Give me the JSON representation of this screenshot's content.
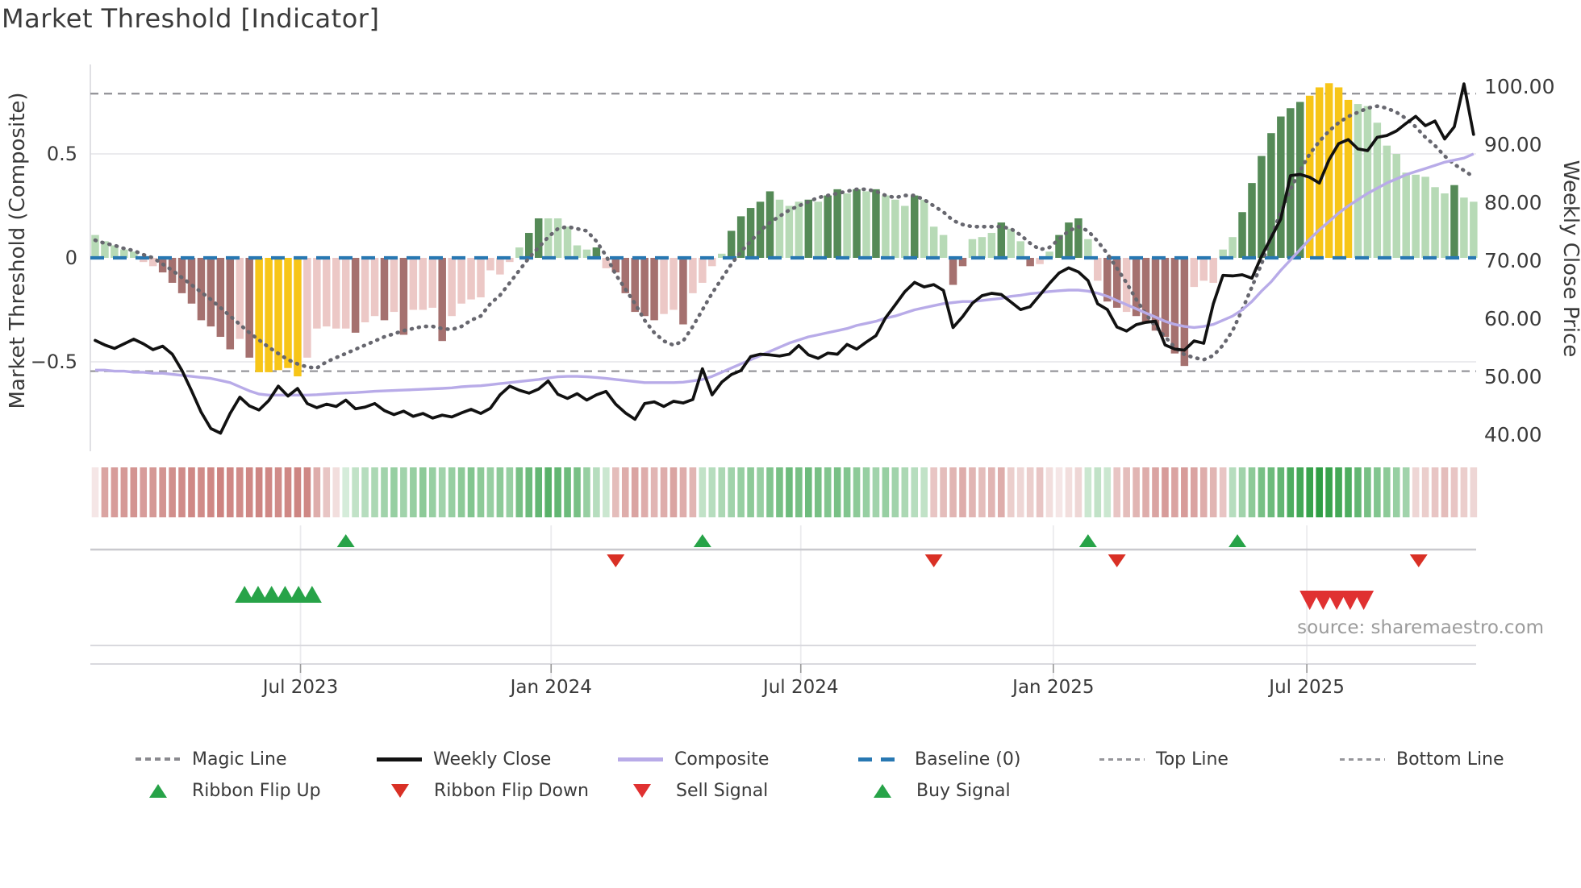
{
  "title": "Market Threshold [Indicator]",
  "source": "source: sharemaestro.com",
  "axes": {
    "left_label": "Market Threshold (Composite)",
    "right_label": "Weekly Close Price",
    "left_ticks": [
      {
        "label": "0.5",
        "value": 0.5
      },
      {
        "label": "0",
        "value": 0
      },
      {
        "label": "−0.5",
        "value": -0.5
      }
    ],
    "right_ticks": [
      {
        "label": "100.00",
        "value": 100
      },
      {
        "label": "90.00",
        "value": 90
      },
      {
        "label": "80.00",
        "value": 80
      },
      {
        "label": "70.00",
        "value": 70
      },
      {
        "label": "60.00",
        "value": 60
      },
      {
        "label": "50.00",
        "value": 50
      },
      {
        "label": "40.00",
        "value": 40
      }
    ],
    "x_ticks": [
      {
        "label": "Jul 2023",
        "week": 21.3
      },
      {
        "label": "Jan 2024",
        "week": 47.3
      },
      {
        "label": "Jul 2024",
        "week": 73.2
      },
      {
        "label": "Jan 2025",
        "week": 99.4
      },
      {
        "label": "Jul 2025",
        "week": 125.7
      }
    ]
  },
  "legend": {
    "magic": "Magic Line",
    "weekly_close": "Weekly Close",
    "composite": "Composite",
    "baseline": "Baseline (0)",
    "top_line": "Top Line",
    "bottom_line": "Bottom Line",
    "flip_up": "Ribbon Flip Up",
    "flip_down": "Ribbon Flip Down",
    "sell": "Sell Signal",
    "buy": "Buy Signal"
  },
  "colors": {
    "bar_palette": {
      "g": "#b7dab6",
      "G": "#558a57",
      "r": "#ecc8c6",
      "R": "#a5716f",
      "Y": "#f7c518"
    },
    "weekly_close": "#111111",
    "composite": "#b8abe8",
    "magic_line": "#67676f",
    "baseline": "#2878b2",
    "threshold_lines": "#96969b",
    "grid": "#ebebee",
    "spine": "#d9d9de",
    "axis_text": "#3a3a3a",
    "ribbon_green": "#2f9e44",
    "ribbon_red": "#bc5a56",
    "flip_up": "#27a348",
    "flip_down": "#d93025",
    "buy": "#27a348",
    "sell": "#e03131"
  },
  "chart_data": {
    "type": "bar",
    "note": "combo chart: weekly composite bars (left axis), weekly close price line (right axis), composite and magic lines, signal ribbon and markers",
    "weeks": 144,
    "top_line": 0.79,
    "bottom_line": -0.545,
    "baseline": 0,
    "left_axis_range": [
      -1.0,
      1.0
    ],
    "right_axis_range": [
      40,
      100
    ],
    "bars": {
      "values": [
        0.11,
        0.08,
        0.06,
        0.04,
        0.03,
        -0.02,
        -0.04,
        -0.07,
        -0.12,
        -0.17,
        -0.22,
        -0.3,
        -0.33,
        -0.38,
        -0.44,
        -0.39,
        -0.48,
        -0.55,
        -0.55,
        -0.54,
        -0.53,
        -0.57,
        -0.48,
        -0.34,
        -0.33,
        -0.34,
        -0.34,
        -0.36,
        -0.31,
        -0.28,
        -0.3,
        -0.26,
        -0.37,
        -0.25,
        -0.25,
        -0.24,
        -0.4,
        -0.28,
        -0.22,
        -0.2,
        -0.19,
        -0.06,
        -0.08,
        -0.02,
        0.05,
        0.12,
        0.19,
        0.19,
        0.19,
        0.15,
        0.06,
        0.04,
        0.05,
        -0.05,
        -0.07,
        -0.17,
        -0.26,
        -0.28,
        -0.3,
        -0.27,
        -0.25,
        -0.32,
        -0.17,
        -0.12,
        -0.04,
        0.02,
        0.13,
        0.2,
        0.24,
        0.27,
        0.32,
        0.28,
        0.25,
        0.27,
        0.28,
        0.27,
        0.3,
        0.33,
        0.31,
        0.33,
        0.32,
        0.33,
        0.3,
        0.28,
        0.25,
        0.3,
        0.28,
        0.15,
        0.11,
        -0.13,
        -0.04,
        0.09,
        0.1,
        0.12,
        0.17,
        0.14,
        0.08,
        -0.04,
        -0.03,
        0.03,
        0.11,
        0.17,
        0.19,
        0.09,
        -0.11,
        -0.21,
        -0.24,
        -0.26,
        -0.28,
        -0.31,
        -0.35,
        -0.38,
        -0.46,
        -0.52,
        -0.14,
        -0.11,
        -0.12,
        0.04,
        0.1,
        0.22,
        0.36,
        0.49,
        0.6,
        0.68,
        0.72,
        0.75,
        0.78,
        0.82,
        0.84,
        0.82,
        0.76,
        0.74,
        0.73,
        0.65,
        0.54,
        0.5,
        0.41,
        0.4,
        0.39,
        0.34,
        0.31,
        0.35,
        0.29,
        0.27
      ],
      "colors": [
        "g",
        "g",
        "g",
        "g",
        "g",
        "r",
        "r",
        "R",
        "R",
        "R",
        "R",
        "R",
        "R",
        "R",
        "R",
        "r",
        "R",
        "Y",
        "Y",
        "Y",
        "Y",
        "Y",
        "r",
        "r",
        "r",
        "r",
        "r",
        "R",
        "r",
        "r",
        "R",
        "r",
        "R",
        "r",
        "r",
        "r",
        "R",
        "r",
        "r",
        "r",
        "r",
        "r",
        "r",
        "r",
        "g",
        "G",
        "G",
        "g",
        "g",
        "g",
        "g",
        "g",
        "G",
        "r",
        "R",
        "R",
        "R",
        "R",
        "R",
        "r",
        "r",
        "R",
        "r",
        "r",
        "r",
        "g",
        "G",
        "G",
        "G",
        "G",
        "G",
        "g",
        "g",
        "g",
        "G",
        "g",
        "G",
        "G",
        "g",
        "G",
        "g",
        "G",
        "g",
        "g",
        "g",
        "G",
        "g",
        "g",
        "g",
        "R",
        "R",
        "g",
        "g",
        "g",
        "G",
        "g",
        "g",
        "R",
        "r",
        "g",
        "G",
        "G",
        "G",
        "g",
        "r",
        "R",
        "R",
        "r",
        "R",
        "R",
        "R",
        "R",
        "R",
        "R",
        "r",
        "r",
        "r",
        "g",
        "g",
        "G",
        "G",
        "G",
        "G",
        "G",
        "G",
        "G",
        "Y",
        "Y",
        "Y",
        "Y",
        "Y",
        "g",
        "g",
        "g",
        "g",
        "g",
        "g",
        "g",
        "g",
        "g",
        "g",
        "G",
        "g",
        "g"
      ]
    },
    "weekly_close": [
      56.2,
      55.4,
      54.8,
      55.6,
      56.4,
      55.6,
      54.6,
      55.2,
      53.8,
      51.0,
      47.5,
      43.8,
      41.0,
      40.2,
      43.6,
      46.4,
      44.9,
      44.2,
      45.8,
      48.3,
      46.6,
      47.9,
      45.3,
      44.6,
      45.2,
      44.8,
      45.9,
      44.4,
      44.7,
      45.3,
      44.1,
      43.4,
      44.0,
      43.1,
      43.6,
      42.8,
      43.3,
      43.0,
      43.7,
      44.3,
      43.6,
      44.5,
      46.8,
      48.3,
      47.6,
      47.1,
      47.8,
      49.2,
      46.9,
      46.2,
      47.0,
      45.9,
      46.8,
      47.4,
      45.2,
      43.7,
      42.6,
      45.3,
      45.6,
      44.8,
      45.7,
      45.4,
      46.0,
      51.3,
      46.8,
      49.0,
      50.3,
      51.0,
      53.4,
      53.8,
      53.7,
      53.5,
      53.8,
      55.3,
      53.7,
      53.1,
      54.0,
      53.8,
      55.5,
      54.7,
      55.9,
      57.0,
      60.1,
      62.3,
      64.6,
      66.2,
      65.4,
      65.8,
      64.8,
      58.4,
      60.3,
      62.6,
      63.9,
      64.3,
      64.1,
      62.8,
      61.5,
      62.0,
      64.0,
      66.0,
      67.8,
      68.7,
      68.0,
      66.5,
      62.5,
      61.5,
      58.5,
      57.8,
      58.9,
      59.3,
      59.5,
      55.4,
      54.7,
      54.5,
      56.1,
      55.7,
      62.5,
      67.4,
      67.3,
      67.5,
      66.9,
      70.7,
      73.9,
      77.1,
      84.6,
      84.8,
      84.3,
      83.3,
      87.3,
      90.1,
      90.8,
      89.2,
      88.9,
      91.2,
      91.5,
      92.3,
      93.6,
      94.8,
      93.2,
      94.0,
      90.9,
      93.0,
      100.4,
      91.7
    ],
    "composite": [
      -0.54,
      -0.54,
      -0.545,
      -0.545,
      -0.55,
      -0.55,
      -0.555,
      -0.555,
      -0.56,
      -0.565,
      -0.57,
      -0.575,
      -0.58,
      -0.59,
      -0.6,
      -0.62,
      -0.64,
      -0.655,
      -0.66,
      -0.66,
      -0.66,
      -0.66,
      -0.66,
      -0.658,
      -0.655,
      -0.652,
      -0.65,
      -0.648,
      -0.645,
      -0.642,
      -0.64,
      -0.638,
      -0.636,
      -0.634,
      -0.632,
      -0.63,
      -0.628,
      -0.625,
      -0.62,
      -0.617,
      -0.615,
      -0.61,
      -0.605,
      -0.6,
      -0.595,
      -0.59,
      -0.585,
      -0.578,
      -0.572,
      -0.57,
      -0.57,
      -0.572,
      -0.575,
      -0.58,
      -0.585,
      -0.59,
      -0.595,
      -0.6,
      -0.6,
      -0.6,
      -0.6,
      -0.598,
      -0.592,
      -0.585,
      -0.57,
      -0.55,
      -0.53,
      -0.51,
      -0.49,
      -0.47,
      -0.45,
      -0.43,
      -0.41,
      -0.395,
      -0.38,
      -0.37,
      -0.36,
      -0.35,
      -0.34,
      -0.325,
      -0.315,
      -0.305,
      -0.29,
      -0.28,
      -0.265,
      -0.25,
      -0.24,
      -0.23,
      -0.22,
      -0.215,
      -0.21,
      -0.21,
      -0.205,
      -0.2,
      -0.195,
      -0.185,
      -0.18,
      -0.172,
      -0.168,
      -0.162,
      -0.158,
      -0.155,
      -0.155,
      -0.16,
      -0.17,
      -0.185,
      -0.205,
      -0.225,
      -0.245,
      -0.265,
      -0.285,
      -0.305,
      -0.32,
      -0.33,
      -0.335,
      -0.33,
      -0.32,
      -0.3,
      -0.28,
      -0.25,
      -0.21,
      -0.16,
      -0.115,
      -0.06,
      -0.01,
      0.04,
      0.09,
      0.135,
      0.175,
      0.215,
      0.25,
      0.28,
      0.31,
      0.335,
      0.36,
      0.38,
      0.4,
      0.415,
      0.43,
      0.445,
      0.46,
      0.47,
      0.48,
      0.5
    ],
    "magic_line": [
      0.085,
      0.07,
      0.06,
      0.045,
      0.035,
      0.015,
      0.0,
      -0.03,
      -0.06,
      -0.095,
      -0.13,
      -0.165,
      -0.2,
      -0.24,
      -0.28,
      -0.32,
      -0.36,
      -0.395,
      -0.43,
      -0.46,
      -0.49,
      -0.51,
      -0.525,
      -0.53,
      -0.5,
      -0.48,
      -0.46,
      -0.44,
      -0.42,
      -0.4,
      -0.38,
      -0.365,
      -0.35,
      -0.34,
      -0.33,
      -0.33,
      -0.34,
      -0.345,
      -0.33,
      -0.3,
      -0.28,
      -0.22,
      -0.18,
      -0.12,
      -0.06,
      0.0,
      0.05,
      0.1,
      0.14,
      0.15,
      0.14,
      0.13,
      0.08,
      0.01,
      -0.08,
      -0.15,
      -0.22,
      -0.3,
      -0.36,
      -0.4,
      -0.42,
      -0.4,
      -0.33,
      -0.25,
      -0.17,
      -0.1,
      -0.03,
      0.03,
      0.08,
      0.13,
      0.17,
      0.2,
      0.23,
      0.25,
      0.27,
      0.29,
      0.3,
      0.31,
      0.32,
      0.33,
      0.33,
      0.32,
      0.3,
      0.29,
      0.3,
      0.3,
      0.28,
      0.25,
      0.22,
      0.18,
      0.16,
      0.15,
      0.15,
      0.15,
      0.15,
      0.14,
      0.11,
      0.07,
      0.04,
      0.05,
      0.09,
      0.13,
      0.15,
      0.13,
      0.08,
      0.02,
      -0.05,
      -0.12,
      -0.2,
      -0.27,
      -0.33,
      -0.38,
      -0.43,
      -0.465,
      -0.48,
      -0.49,
      -0.47,
      -0.42,
      -0.35,
      -0.25,
      -0.14,
      -0.03,
      0.1,
      0.22,
      0.33,
      0.42,
      0.5,
      0.56,
      0.61,
      0.65,
      0.68,
      0.7,
      0.72,
      0.73,
      0.72,
      0.7,
      0.67,
      0.63,
      0.58,
      0.54,
      0.49,
      0.45,
      0.42,
      0.39
    ],
    "ribbon": [
      -0.15,
      -0.55,
      -0.6,
      -0.62,
      -0.65,
      -0.6,
      -0.62,
      -0.65,
      -0.68,
      -0.7,
      -0.72,
      -0.7,
      -0.72,
      -0.75,
      -0.72,
      -0.7,
      -0.72,
      -0.74,
      -0.72,
      -0.7,
      -0.72,
      -0.74,
      -0.72,
      -0.5,
      -0.35,
      -0.2,
      0.2,
      0.3,
      0.35,
      0.4,
      0.45,
      0.5,
      0.45,
      0.5,
      0.55,
      0.5,
      0.45,
      0.5,
      0.55,
      0.6,
      0.55,
      0.5,
      0.55,
      0.5,
      0.65,
      0.7,
      0.75,
      0.8,
      0.75,
      0.7,
      0.65,
      0.5,
      0.35,
      0.25,
      -0.4,
      -0.5,
      -0.55,
      -0.5,
      -0.45,
      -0.5,
      -0.55,
      -0.5,
      -0.45,
      0.3,
      0.35,
      0.4,
      0.45,
      0.5,
      0.55,
      0.5,
      0.6,
      0.65,
      0.7,
      0.65,
      0.7,
      0.65,
      0.6,
      0.65,
      0.6,
      0.55,
      0.5,
      0.45,
      0.5,
      0.45,
      0.4,
      0.35,
      0.3,
      -0.35,
      -0.4,
      -0.45,
      -0.5,
      -0.45,
      -0.4,
      -0.45,
      -0.5,
      -0.3,
      -0.25,
      -0.3,
      -0.35,
      -0.2,
      -0.15,
      -0.2,
      -0.25,
      0.25,
      0.3,
      0.25,
      -0.35,
      -0.4,
      -0.45,
      -0.5,
      -0.55,
      -0.6,
      -0.55,
      -0.6,
      -0.55,
      -0.5,
      -0.45,
      -0.35,
      0.35,
      0.45,
      0.55,
      0.65,
      0.7,
      0.75,
      0.85,
      0.9,
      0.95,
      1.0,
      0.95,
      0.9,
      0.85,
      0.75,
      0.65,
      0.6,
      0.55,
      0.5,
      0.45,
      -0.25,
      -0.3,
      -0.35,
      -0.4,
      -0.35,
      -0.3,
      -0.25
    ],
    "signals": {
      "ribbon_flip_up_weeks": [
        26,
        63,
        103,
        118.5
      ],
      "ribbon_flip_down_weeks": [
        54,
        87,
        106,
        137.3
      ],
      "buy_signal_weeks": [
        15.5,
        16.9,
        18.3,
        19.7,
        21.1,
        22.5
      ],
      "sell_signal_weeks": [
        126,
        127.4,
        128.8,
        130.2,
        131.6
      ]
    }
  }
}
